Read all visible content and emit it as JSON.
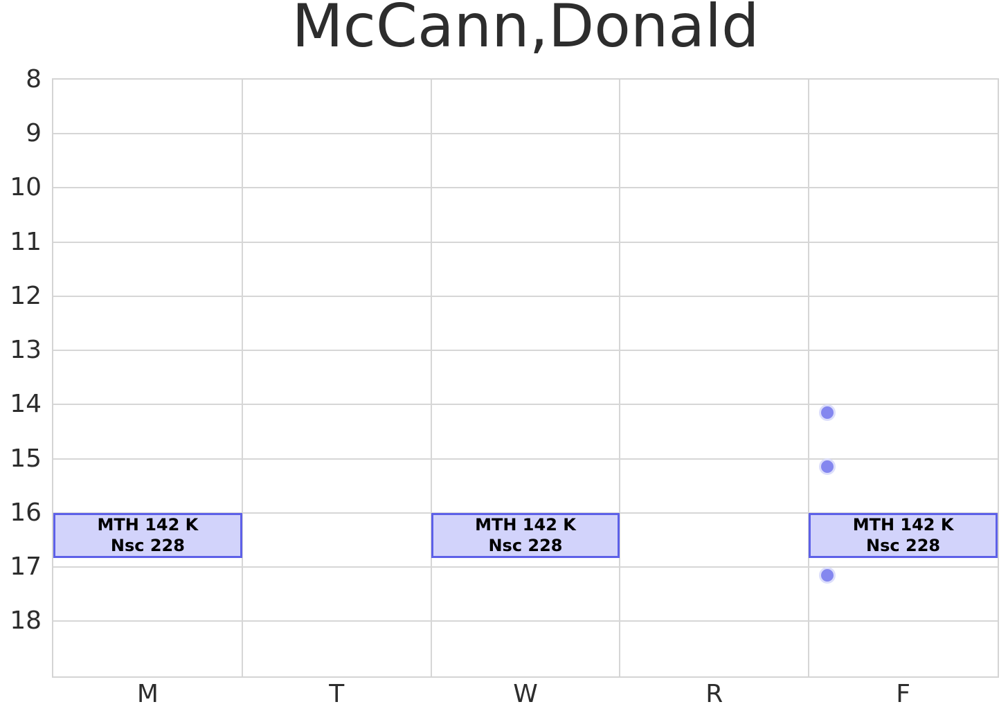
{
  "chart_data": {
    "type": "schedule",
    "title": "McCann,Donald",
    "x_categories": [
      "M",
      "T",
      "W",
      "R",
      "F"
    ],
    "y_ticks": [
      8,
      9,
      10,
      11,
      12,
      13,
      14,
      15,
      16,
      17,
      18
    ],
    "y_min": 8,
    "y_max": 19.02,
    "y_inverted": true,
    "y_unit": "hour-of-day",
    "grid": true,
    "legend": "none",
    "events": [
      {
        "day": "M",
        "start": 16.0,
        "end": 16.83,
        "lines": [
          "MTH 142 K",
          "Nsc 228"
        ]
      },
      {
        "day": "W",
        "start": 16.0,
        "end": 16.83,
        "lines": [
          "MTH 142 K",
          "Nsc 228"
        ]
      },
      {
        "day": "F",
        "start": 16.0,
        "end": 16.83,
        "lines": [
          "MTH 142 K",
          "Nsc 228"
        ]
      }
    ],
    "dots": [
      {
        "day": "F",
        "time": 14.15
      },
      {
        "day": "F",
        "time": 15.15
      },
      {
        "day": "F",
        "time": 17.15
      }
    ],
    "dot_x_frac_in_column": 0.1,
    "colors": {
      "background": "#ffffff",
      "grid": "#d6d6d6",
      "spine": "#d4d4d4",
      "text": "#2d2d2d",
      "event_fill": "#d2d3fb",
      "event_border": "#5d60e8",
      "event_text": "#000000",
      "dot_fill": "#8487ef",
      "dot_ring": "#dcdefb"
    }
  }
}
